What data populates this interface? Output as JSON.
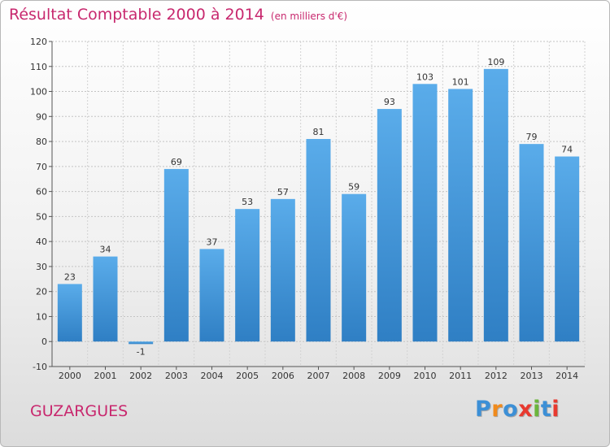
{
  "chart_data": {
    "type": "bar",
    "title": "Résultat Comptable 2000 à 2014",
    "subtitle": "(en milliers d'€)",
    "categories": [
      "2000",
      "2001",
      "2002",
      "2003",
      "2004",
      "2005",
      "2006",
      "2007",
      "2008",
      "2009",
      "2010",
      "2011",
      "2012",
      "2013",
      "2014"
    ],
    "values": [
      23,
      34,
      -1,
      69,
      37,
      53,
      57,
      81,
      59,
      93,
      103,
      101,
      109,
      79,
      74
    ],
    "ylim": [
      -10,
      120
    ],
    "yticks": [
      -10,
      0,
      10,
      20,
      30,
      40,
      50,
      60,
      70,
      80,
      90,
      100,
      110,
      120
    ],
    "grid": true,
    "xlabel": "",
    "ylabel": ""
  },
  "footer": {
    "commune": "GUZARGUES",
    "logo": [
      "P",
      "r",
      "o",
      "x",
      "i",
      "t",
      "i"
    ]
  },
  "colors": {
    "accent": "#c8286e",
    "bar_top": "#5aacea",
    "bar_bottom": "#2f7fc4",
    "logo": [
      "#3c8fd6",
      "#f08a1c",
      "#3c8fd6",
      "#e8392f",
      "#6bb53c",
      "#3c8fd6",
      "#e8392f"
    ]
  }
}
